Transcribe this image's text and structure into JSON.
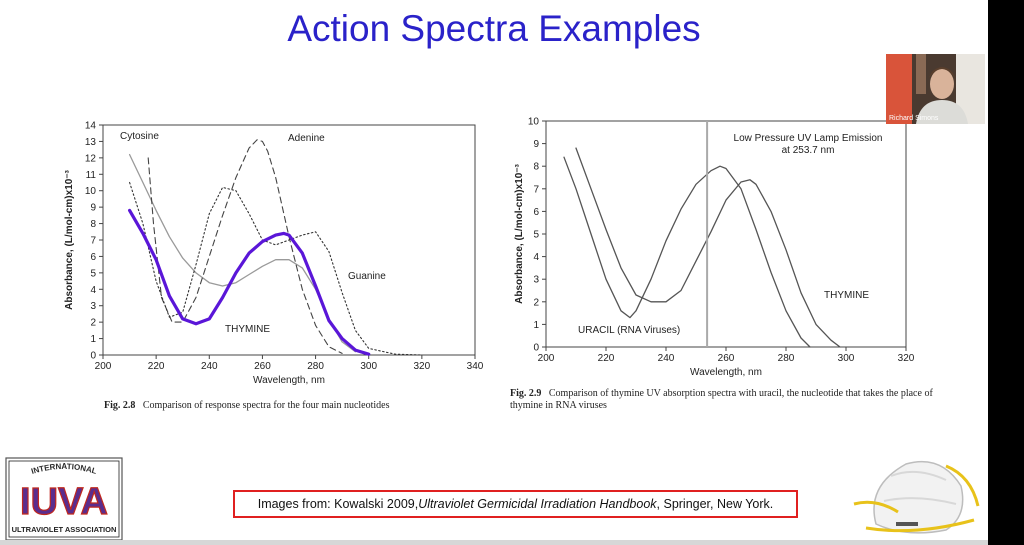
{
  "slide": {
    "title": "Action Spectra Examples",
    "citation": {
      "prefix": "Images from: Kowalski 2009, ",
      "book": "Ultraviolet Germicidal Irradiation Handbook",
      "suffix": ", Springer, New York."
    },
    "logo": {
      "text_top": "INTERNATIONAL",
      "text_main": "IUVA",
      "text_bottom": "ULTRAVIOLET ASSOCIATION"
    }
  },
  "video_tile": {
    "participant_name": "Richard Simons"
  },
  "colors": {
    "title": "#2a22c9",
    "thymine_curve": "#5a16d8",
    "citation_border": "#e02020"
  },
  "chart_data": [
    {
      "type": "line",
      "xlabel": "Wavelength, nm",
      "ylabel": "Absorbance, (L/mol-cm)x10⁻³",
      "xlim": [
        200,
        340
      ],
      "ylim": [
        0,
        14
      ],
      "xticks": [
        200,
        220,
        240,
        260,
        280,
        300,
        320,
        340
      ],
      "yticks": [
        0,
        1,
        2,
        3,
        4,
        5,
        6,
        7,
        8,
        9,
        10,
        11,
        12,
        13,
        14
      ],
      "caption_label": "Fig. 2.8",
      "caption_text": "Comparison of response spectra for the four main nucleotides",
      "series": [
        {
          "name": "Cytosine",
          "style": "solid-gray",
          "x": [
            210,
            215,
            220,
            225,
            230,
            235,
            240,
            245,
            250,
            255,
            260,
            265,
            270,
            275,
            280,
            285,
            290,
            295
          ],
          "y": [
            12.2,
            10.5,
            8.8,
            7.2,
            5.9,
            5.0,
            4.4,
            4.2,
            4.4,
            4.9,
            5.4,
            5.8,
            5.8,
            5.3,
            4.0,
            2.2,
            0.8,
            0.2
          ]
        },
        {
          "name": "Adenine",
          "style": "dashed",
          "x": [
            217,
            219,
            222,
            226,
            230,
            235,
            240,
            245,
            250,
            255,
            258,
            260,
            262,
            265,
            270,
            275,
            280,
            285,
            290
          ],
          "y": [
            12.0,
            8.0,
            3.5,
            2.0,
            2.0,
            3.5,
            6.0,
            8.5,
            10.8,
            12.6,
            13.1,
            13.0,
            12.4,
            10.8,
            7.2,
            4.0,
            1.8,
            0.5,
            0.1
          ]
        },
        {
          "name": "Guanine",
          "style": "dotted",
          "x": [
            210,
            215,
            220,
            225,
            230,
            235,
            240,
            245,
            250,
            255,
            260,
            265,
            270,
            275,
            280,
            285,
            290,
            295,
            300,
            310,
            320
          ],
          "y": [
            10.5,
            8.0,
            4.5,
            2.3,
            2.6,
            5.5,
            8.6,
            10.2,
            10.0,
            8.6,
            7.0,
            6.7,
            7.0,
            7.3,
            7.5,
            6.3,
            3.8,
            1.5,
            0.4,
            0.05,
            0
          ]
        },
        {
          "name": "THYMINE",
          "style": "thick-purple",
          "x": [
            210,
            215,
            220,
            225,
            230,
            235,
            240,
            245,
            250,
            255,
            260,
            265,
            268,
            270,
            275,
            280,
            285,
            290,
            295,
            300
          ],
          "y": [
            8.8,
            7.4,
            5.8,
            3.6,
            2.2,
            1.9,
            2.2,
            3.5,
            5.0,
            6.2,
            6.9,
            7.3,
            7.4,
            7.3,
            6.2,
            4.2,
            2.1,
            1.0,
            0.3,
            0.05
          ]
        }
      ]
    },
    {
      "type": "line",
      "xlabel": "Wavelength, nm",
      "ylabel": "Absorbance, (L/mol-cm)x10⁻³",
      "xlim": [
        200,
        320
      ],
      "ylim": [
        0,
        10
      ],
      "xticks": [
        200,
        220,
        240,
        260,
        280,
        300,
        320
      ],
      "yticks": [
        0,
        1,
        2,
        3,
        4,
        5,
        6,
        7,
        8,
        9,
        10
      ],
      "annotation": "Low Pressure UV Lamp Emission at 253.7 nm",
      "annotation_line1": "Low Pressure UV Lamp Emission",
      "annotation_line2": "at 253.7 nm",
      "emission_line_x": 253.7,
      "caption_label": "Fig. 2.9",
      "caption_text": "Comparison of thymine UV absorption spectra with uracil, the nucleotide that takes the place of thymine in RNA viruses",
      "series": [
        {
          "name": "URACIL (RNA Viruses)",
          "x": [
            206,
            210,
            215,
            220,
            225,
            228,
            230,
            235,
            240,
            245,
            250,
            255,
            258,
            260,
            265,
            270,
            275,
            280,
            285,
            288
          ],
          "y": [
            8.4,
            7.0,
            5.0,
            3.0,
            1.6,
            1.3,
            1.6,
            3.0,
            4.7,
            6.1,
            7.2,
            7.8,
            8.0,
            7.9,
            7.0,
            5.2,
            3.3,
            1.6,
            0.4,
            0.0
          ]
        },
        {
          "name": "THYMINE",
          "x": [
            210,
            215,
            220,
            225,
            230,
            235,
            240,
            245,
            250,
            255,
            260,
            265,
            268,
            270,
            275,
            280,
            285,
            290,
            295,
            298
          ],
          "y": [
            8.8,
            7.0,
            5.2,
            3.5,
            2.3,
            2.0,
            2.0,
            2.5,
            3.8,
            5.1,
            6.5,
            7.3,
            7.4,
            7.2,
            6.0,
            4.3,
            2.4,
            1.0,
            0.3,
            0.0
          ]
        }
      ]
    }
  ]
}
